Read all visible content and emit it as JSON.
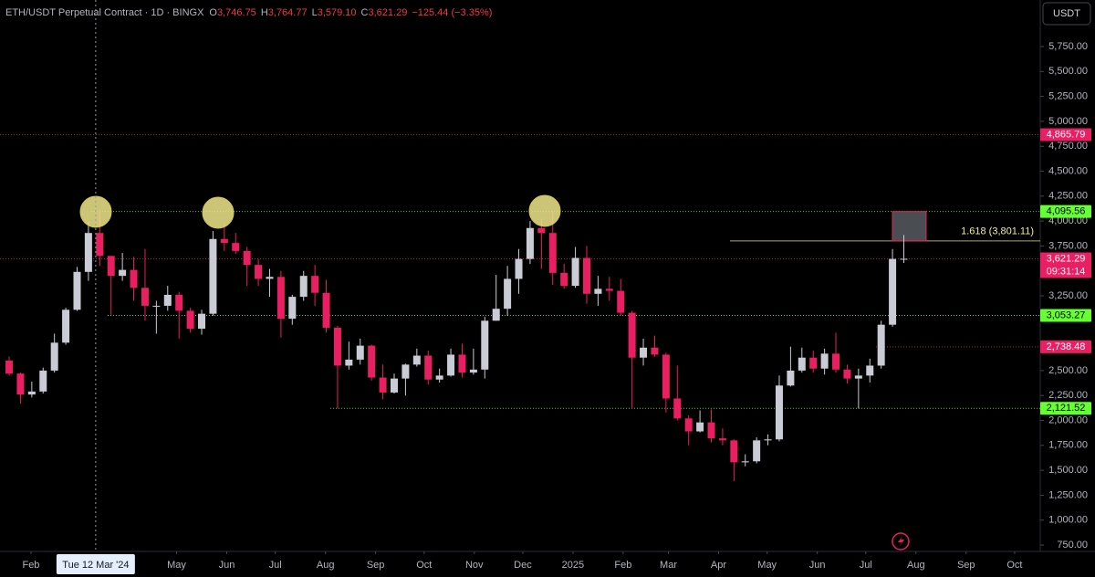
{
  "chart_data": {
    "type": "candlestick",
    "title": "ETH/USDT Perpetual Contract · 1D · BINGX",
    "ohlc_labels": [
      "O",
      "H",
      "L",
      "C"
    ],
    "ohlc_values": [
      3746.75,
      3764.77,
      3579.1,
      3621.29
    ],
    "ohlc_value_labels": [
      "3,746.75",
      "3,764.77",
      "3,579.10",
      "3,621.29"
    ],
    "change_label": "−125.44 (−3.35%)",
    "currency": "USDT",
    "up_color": "#c9ccd4",
    "down_color": "#e91e63",
    "x": [
      "2024-01-15",
      "2024-01-22",
      "2024-01-29",
      "2024-02-05",
      "2024-02-12",
      "2024-02-19",
      "2024-02-26",
      "2024-03-04",
      "2024-03-11",
      "2024-03-18",
      "2024-03-25",
      "2024-04-01",
      "2024-04-08",
      "2024-04-15",
      "2024-04-22",
      "2024-04-29",
      "2024-05-06",
      "2024-05-13",
      "2024-05-20",
      "2024-05-27",
      "2024-06-03",
      "2024-06-10",
      "2024-06-17",
      "2024-06-24",
      "2024-07-01",
      "2024-07-08",
      "2024-07-15",
      "2024-07-22",
      "2024-07-29",
      "2024-08-05",
      "2024-08-12",
      "2024-08-19",
      "2024-08-26",
      "2024-09-02",
      "2024-09-09",
      "2024-09-16",
      "2024-09-23",
      "2024-09-30",
      "2024-10-07",
      "2024-10-14",
      "2024-10-21",
      "2024-10-28",
      "2024-11-04",
      "2024-11-11",
      "2024-11-18",
      "2024-11-25",
      "2024-12-02",
      "2024-12-09",
      "2024-12-16",
      "2024-12-23",
      "2024-12-30",
      "2025-01-06",
      "2025-01-13",
      "2025-01-20",
      "2025-01-27",
      "2025-02-03",
      "2025-02-10",
      "2025-02-17",
      "2025-02-24",
      "2025-03-03",
      "2025-03-10",
      "2025-03-17",
      "2025-03-24",
      "2025-03-31",
      "2025-04-07",
      "2025-04-14",
      "2025-04-21",
      "2025-04-28",
      "2025-05-05",
      "2025-05-12",
      "2025-05-19",
      "2025-05-26",
      "2025-06-02",
      "2025-06-09",
      "2025-06-16",
      "2025-06-23",
      "2025-06-30",
      "2025-07-07",
      "2025-07-14",
      "2025-07-21"
    ],
    "open": [
      2600,
      2470,
      2260,
      2290,
      2500,
      2780,
      3110,
      3490,
      3880,
      3650,
      3450,
      3510,
      3330,
      3150,
      3150,
      3260,
      3100,
      2920,
      3070,
      3820,
      3780,
      3700,
      3560,
      3420,
      3440,
      3020,
      3240,
      3450,
      3280,
      2930,
      2550,
      2610,
      2750,
      2430,
      2280,
      2420,
      2560,
      2650,
      2410,
      2450,
      2660,
      2480,
      2510,
      3000,
      3120,
      3420,
      3620,
      3930,
      3880,
      3480,
      3350,
      3630,
      3270,
      3320,
      3300,
      3080,
      2630,
      2730,
      2660,
      2220,
      2020,
      1890,
      1980,
      1820,
      1800,
      1580,
      1590,
      1800,
      1810,
      2350,
      2500,
      2630,
      2520,
      2670,
      2510,
      2420,
      2450,
      2550,
      2960,
      3620
    ],
    "high": [
      2640,
      2480,
      2390,
      2530,
      2870,
      3130,
      3540,
      3990,
      4095,
      3650,
      3680,
      3640,
      3720,
      3200,
      3350,
      3290,
      3130,
      3110,
      3900,
      3970,
      3880,
      3740,
      3620,
      3520,
      3500,
      3260,
      3500,
      3560,
      3410,
      2950,
      2790,
      2820,
      2760,
      2560,
      2470,
      2570,
      2720,
      2700,
      2520,
      2720,
      2770,
      2720,
      3040,
      3460,
      3550,
      3720,
      4000,
      4020,
      4095,
      3570,
      3740,
      3750,
      3450,
      3440,
      3420,
      3100,
      2820,
      2850,
      2680,
      2550,
      2050,
      2100,
      2110,
      1920,
      1810,
      1660,
      1830,
      1860,
      2450,
      2740,
      2730,
      2700,
      2720,
      2880,
      2560,
      2520,
      2620,
      3000,
      3720,
      3860
    ],
    "low": [
      2450,
      2170,
      2230,
      2270,
      2480,
      2760,
      3100,
      3400,
      3550,
      3060,
      3400,
      3200,
      3000,
      2870,
      3100,
      2820,
      2880,
      2860,
      3050,
      3700,
      3670,
      3350,
      3350,
      3240,
      2830,
      2960,
      3200,
      3150,
      2880,
      2120,
      2510,
      2560,
      2400,
      2210,
      2270,
      2250,
      2540,
      2360,
      2380,
      2440,
      2430,
      2460,
      2420,
      3000,
      3050,
      3270,
      3570,
      3520,
      3360,
      3320,
      3330,
      3170,
      3150,
      3200,
      3050,
      2120,
      2550,
      2640,
      2080,
      2000,
      1750,
      1880,
      1780,
      1750,
      1390,
      1540,
      1570,
      1750,
      1790,
      2340,
      2480,
      2480,
      2460,
      2480,
      2370,
      2120,
      2380,
      2520,
      2940,
      3580
    ],
    "close": [
      2470,
      2260,
      2290,
      2500,
      2780,
      3110,
      3490,
      3880,
      3650,
      3450,
      3510,
      3330,
      3150,
      3150,
      3260,
      3100,
      2920,
      3070,
      3820,
      3780,
      3700,
      3560,
      3420,
      3440,
      3020,
      3240,
      3450,
      3280,
      2930,
      2550,
      2610,
      2750,
      2430,
      2280,
      2420,
      2560,
      2650,
      2410,
      2450,
      2660,
      2480,
      2510,
      3000,
      3120,
      3420,
      3620,
      3930,
      3880,
      3480,
      3350,
      3630,
      3270,
      3320,
      3300,
      3080,
      2630,
      2730,
      2660,
      2220,
      2020,
      1890,
      1980,
      1820,
      1800,
      1580,
      1590,
      1800,
      1810,
      2350,
      2500,
      2630,
      2520,
      2670,
      2510,
      2420,
      2450,
      2550,
      2960,
      3620,
      3621.29
    ],
    "ylim": [
      686,
      6217
    ],
    "yticks": [
      {
        "value": 750,
        "label": "750.00"
      },
      {
        "value": 1000,
        "label": "1,000.00"
      },
      {
        "value": 1250,
        "label": "1,250.00"
      },
      {
        "value": 1500,
        "label": "1,500.00"
      },
      {
        "value": 1750,
        "label": "1,750.00"
      },
      {
        "value": 2000,
        "label": "2,000.00"
      },
      {
        "value": 2250,
        "label": "2,250.00"
      },
      {
        "value": 2500,
        "label": "2,500.00"
      },
      {
        "value": 3250,
        "label": "3,250.00"
      },
      {
        "value": 3750,
        "label": "3,750.00"
      },
      {
        "value": 4000,
        "label": "4,000.00"
      },
      {
        "value": 4250,
        "label": "4,250.00"
      },
      {
        "value": 4500,
        "label": "4,500.00"
      },
      {
        "value": 4750,
        "label": "4,750.00"
      },
      {
        "value": 5000,
        "label": "5,000.00"
      },
      {
        "value": 5250,
        "label": "5,250.00"
      },
      {
        "value": 5500,
        "label": "5,500.00"
      },
      {
        "value": 5750,
        "label": "5,750.00"
      }
    ],
    "xticks": [
      {
        "value": "2024-02-01",
        "label": "Feb"
      },
      {
        "value": "2024-05-01",
        "label": "May"
      },
      {
        "value": "2024-06-01",
        "label": "Jun"
      },
      {
        "value": "2024-07-01",
        "label": "Jul"
      },
      {
        "value": "2024-08-01",
        "label": "Aug"
      },
      {
        "value": "2024-09-01",
        "label": "Sep"
      },
      {
        "value": "2024-10-01",
        "label": "Oct"
      },
      {
        "value": "2024-11-01",
        "label": "Nov"
      },
      {
        "value": "2024-12-01",
        "label": "Dec"
      },
      {
        "value": "2025-01-01",
        "label": "2025"
      },
      {
        "value": "2025-02-01",
        "label": "Feb"
      },
      {
        "value": "2025-03-01",
        "label": "Mar"
      },
      {
        "value": "2025-04-01",
        "label": "Apr"
      },
      {
        "value": "2025-05-01",
        "label": "May"
      },
      {
        "value": "2025-06-01",
        "label": "Jun"
      },
      {
        "value": "2025-07-01",
        "label": "Jul"
      },
      {
        "value": "2025-08-01",
        "label": "Aug"
      },
      {
        "value": "2025-09-01",
        "label": "Sep"
      },
      {
        "value": "2025-10-01",
        "label": "Oct"
      }
    ],
    "crosshair": {
      "value": "2024-03-12",
      "label": "Tue 12 Mar '24"
    },
    "levels": [
      {
        "value": 4865.79,
        "label": "4,865.79",
        "color": "#e91e63"
      },
      {
        "value": 4095.56,
        "label": "4,095.56",
        "color": "#66ff33"
      },
      {
        "value": 3621.29,
        "label": "3,621.29",
        "color": "#e91e63"
      },
      {
        "value": 3053.27,
        "label": "3,053.27",
        "color": "#66ff33"
      },
      {
        "value": 2738.48,
        "label": "2,738.48",
        "color": "#e91e63"
      },
      {
        "value": 2121.52,
        "label": "2,121.52",
        "color": "#66ff33"
      }
    ],
    "countdown": "09:31:14",
    "fib": {
      "value": 3801.11,
      "label": "1.618 (3,801.11)",
      "color": "#f5ef8a"
    }
  }
}
